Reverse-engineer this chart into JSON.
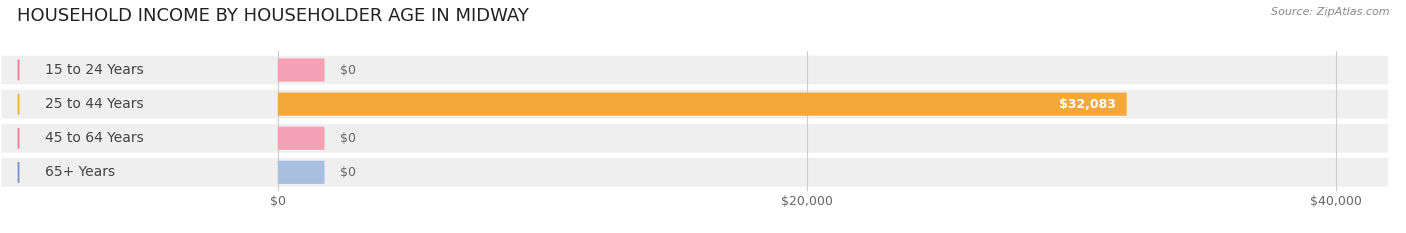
{
  "title": "HOUSEHOLD INCOME BY HOUSEHOLDER AGE IN MIDWAY",
  "source": "Source: ZipAtlas.com",
  "categories": [
    "15 to 24 Years",
    "25 to 44 Years",
    "45 to 64 Years",
    "65+ Years"
  ],
  "values": [
    0,
    32083,
    0,
    0
  ],
  "bar_colors": [
    "#f5a0b5",
    "#f5a83a",
    "#f5a0b5",
    "#a8bfe0"
  ],
  "icon_colors": [
    "#f07898",
    "#f5a83a",
    "#f07898",
    "#7090c8"
  ],
  "row_bg_color": "#efefef",
  "row_bg_color_alt": "#e8e8e8",
  "xlim_data": [
    0,
    42000
  ],
  "xticks": [
    0,
    20000,
    40000
  ],
  "xticklabels": [
    "$0",
    "$20,000",
    "$40,000"
  ],
  "value_labels": [
    "$0",
    "$32,083",
    "$0",
    "$0"
  ],
  "bar_height": 0.68,
  "title_fontsize": 13,
  "label_fontsize": 10,
  "value_fontsize": 9
}
